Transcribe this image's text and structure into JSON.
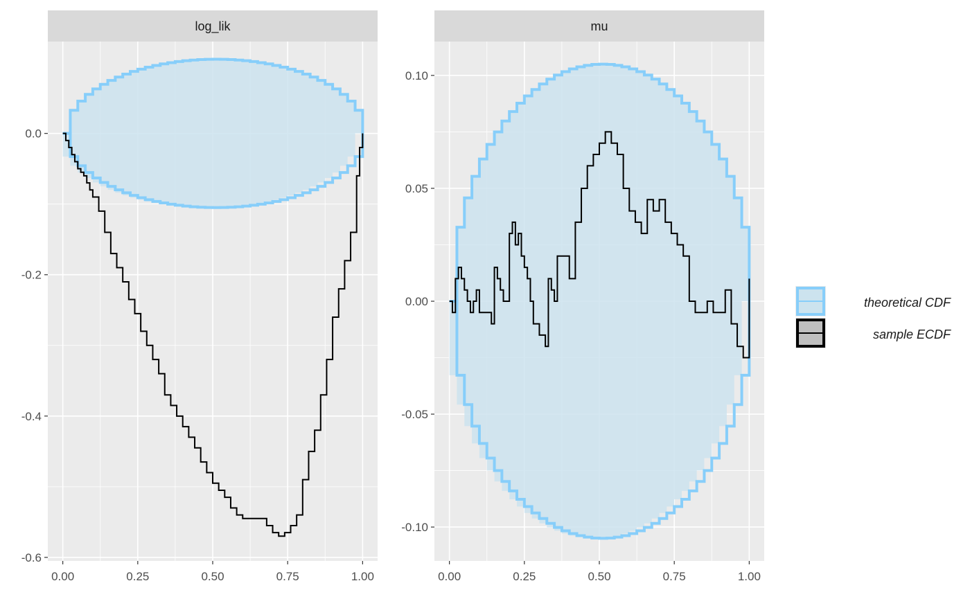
{
  "chart_data": {
    "type": "line",
    "colors": {
      "panel_bg": "#EBEBEB",
      "strip_bg": "#D9D9D9",
      "grid": "#FFFFFF",
      "band_fill": "#CCE3EE",
      "band_line": "#87CEFA",
      "ecdf_line": "#000000",
      "tick_text": "#4D4D4D",
      "tick_mark": "#333333"
    },
    "legend": {
      "position": "right",
      "items": [
        {
          "label": "theoretical CDF",
          "key": "band"
        },
        {
          "label": "sample ECDF",
          "key": "line"
        }
      ]
    },
    "panels": [
      {
        "title": "log_lik",
        "xlim": [
          -0.05,
          1.05
        ],
        "ylim": [
          -0.605,
          0.13
        ],
        "xticks": [
          0.0,
          0.25,
          0.5,
          0.75,
          1.0
        ],
        "xtick_labels": [
          "0.00",
          "0.25",
          "0.50",
          "0.75",
          "1.00"
        ],
        "yticks": [
          0.0,
          -0.2,
          -0.4,
          -0.6
        ],
        "ytick_labels": [
          "0.0",
          "-0.2",
          "-0.4",
          "-0.6"
        ],
        "band": {
          "shape": "ellipse",
          "x_center": 0.5,
          "x_halfwidth": 0.5,
          "upper_peak": 0.105,
          "lower_peak": -0.105,
          "step": 0.02
        },
        "ecdf": {
          "x": [
            0.0,
            0.01,
            0.02,
            0.03,
            0.04,
            0.05,
            0.06,
            0.07,
            0.08,
            0.09,
            0.1,
            0.12,
            0.14,
            0.16,
            0.18,
            0.2,
            0.22,
            0.24,
            0.26,
            0.28,
            0.3,
            0.32,
            0.34,
            0.36,
            0.38,
            0.4,
            0.42,
            0.44,
            0.46,
            0.48,
            0.5,
            0.52,
            0.54,
            0.56,
            0.58,
            0.6,
            0.62,
            0.64,
            0.66,
            0.68,
            0.7,
            0.72,
            0.74,
            0.76,
            0.78,
            0.8,
            0.82,
            0.84,
            0.86,
            0.88,
            0.9,
            0.92,
            0.94,
            0.96,
            0.98,
            0.99,
            1.0
          ],
          "y": [
            0.0,
            -0.01,
            -0.02,
            -0.03,
            -0.04,
            -0.05,
            -0.055,
            -0.06,
            -0.07,
            -0.08,
            -0.09,
            -0.11,
            -0.14,
            -0.17,
            -0.19,
            -0.21,
            -0.235,
            -0.255,
            -0.28,
            -0.3,
            -0.32,
            -0.34,
            -0.37,
            -0.385,
            -0.4,
            -0.415,
            -0.43,
            -0.445,
            -0.465,
            -0.48,
            -0.495,
            -0.505,
            -0.515,
            -0.53,
            -0.54,
            -0.545,
            -0.545,
            -0.545,
            -0.545,
            -0.555,
            -0.565,
            -0.57,
            -0.565,
            -0.555,
            -0.54,
            -0.49,
            -0.45,
            -0.42,
            -0.37,
            -0.32,
            -0.26,
            -0.22,
            -0.18,
            -0.14,
            -0.06,
            -0.02,
            0.0
          ]
        }
      },
      {
        "title": "mu",
        "xlim": [
          -0.05,
          1.05
        ],
        "ylim": [
          -0.115,
          0.115
        ],
        "xticks": [
          0.0,
          0.25,
          0.5,
          0.75,
          1.0
        ],
        "xtick_labels": [
          "0.00",
          "0.25",
          "0.50",
          "0.75",
          "1.00"
        ],
        "yticks": [
          0.1,
          0.05,
          0.0,
          -0.05,
          -0.1
        ],
        "ytick_labels": [
          "0.10",
          "0.05",
          "0.00",
          "-0.05",
          "-0.10"
        ],
        "band": {
          "shape": "ellipse",
          "x_center": 0.5,
          "x_halfwidth": 0.5,
          "upper_peak": 0.105,
          "lower_peak": -0.105,
          "step": 0.025
        },
        "ecdf": {
          "x": [
            0.0,
            0.01,
            0.02,
            0.03,
            0.04,
            0.05,
            0.06,
            0.07,
            0.08,
            0.09,
            0.1,
            0.12,
            0.14,
            0.15,
            0.16,
            0.17,
            0.18,
            0.2,
            0.21,
            0.22,
            0.23,
            0.24,
            0.25,
            0.26,
            0.27,
            0.28,
            0.3,
            0.32,
            0.33,
            0.34,
            0.35,
            0.36,
            0.38,
            0.4,
            0.42,
            0.44,
            0.46,
            0.48,
            0.5,
            0.52,
            0.54,
            0.56,
            0.58,
            0.6,
            0.62,
            0.64,
            0.66,
            0.68,
            0.7,
            0.72,
            0.74,
            0.76,
            0.78,
            0.8,
            0.82,
            0.84,
            0.86,
            0.88,
            0.9,
            0.92,
            0.94,
            0.96,
            0.98,
            1.0
          ],
          "y": [
            0.0,
            -0.005,
            0.01,
            0.015,
            0.01,
            0.005,
            0.0,
            -0.005,
            0.0,
            0.005,
            -0.005,
            -0.005,
            -0.01,
            0.015,
            0.01,
            0.005,
            0.0,
            0.03,
            0.035,
            0.025,
            0.03,
            0.02,
            0.015,
            0.01,
            0.0,
            -0.01,
            -0.015,
            -0.02,
            0.01,
            0.005,
            0.0,
            0.02,
            0.02,
            0.01,
            0.035,
            0.05,
            0.06,
            0.065,
            0.07,
            0.075,
            0.07,
            0.065,
            0.05,
            0.04,
            0.035,
            0.03,
            0.045,
            0.04,
            0.045,
            0.035,
            0.03,
            0.025,
            0.02,
            0.0,
            -0.005,
            -0.005,
            0.0,
            -0.005,
            -0.005,
            0.005,
            -0.01,
            -0.02,
            -0.025,
            0.01
          ]
        }
      }
    ]
  }
}
